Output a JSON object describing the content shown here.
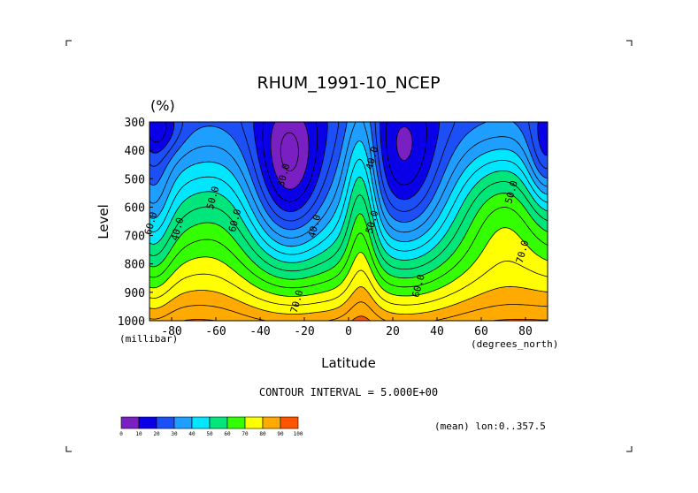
{
  "chart_data": {
    "type": "heatmap",
    "title": "RHUM_1991-10_NCEP",
    "units": "(%)",
    "xlabel": "Latitude",
    "ylabel": "Level",
    "x_unit": "(degrees_north)",
    "y_unit": "(millibar)",
    "xlim": [
      -90,
      90
    ],
    "ylim": [
      1000,
      300
    ],
    "x_ticks": [
      -80,
      -60,
      -40,
      -20,
      0,
      20,
      40,
      60,
      80
    ],
    "y_ticks": [
      300,
      400,
      500,
      600,
      700,
      800,
      900,
      1000
    ],
    "contour_interval_text": "CONTOUR INTERVAL = 5.000E+00",
    "contour_interval": 5,
    "mean_text": "(mean) lon:0..357.5",
    "contour_labels": [
      {
        "text": "30.0",
        "lat": -28,
        "lev": 490
      },
      {
        "text": "40.0",
        "lat": 12,
        "lev": 430
      },
      {
        "text": "40.0",
        "lat": -14,
        "lev": 670
      },
      {
        "text": "50.0",
        "lat": -60,
        "lev": 570
      },
      {
        "text": "50.0",
        "lat": 12,
        "lev": 655
      },
      {
        "text": "50.0",
        "lat": 75,
        "lev": 550
      },
      {
        "text": "60.0",
        "lat": -50,
        "lev": 650
      },
      {
        "text": "60.0",
        "lat": 33,
        "lev": 880
      },
      {
        "text": "40.0",
        "lat": -76,
        "lev": 680
      },
      {
        "text": "70.0",
        "lat": -22,
        "lev": 935
      },
      {
        "text": "70.0",
        "lat": 80,
        "lev": 760
      },
      {
        "text": "60.0",
        "lat": -88,
        "lev": 660
      }
    ],
    "colorbar": {
      "levels": [
        0,
        10,
        20,
        30,
        40,
        50,
        60,
        70,
        80,
        90,
        100
      ],
      "colors": [
        "#7a1fc2",
        "#0a00e8",
        "#1c4ff5",
        "#1e9eff",
        "#00e6ff",
        "#00e67a",
        "#33ff00",
        "#ffff00",
        "#ffaa00",
        "#ff5500",
        "#ff0000"
      ]
    }
  }
}
